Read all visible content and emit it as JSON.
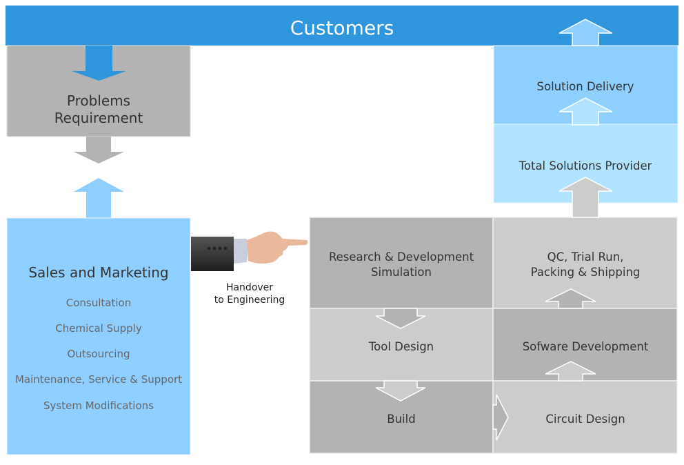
{
  "header": {
    "title": "Customers"
  },
  "problems": {
    "line1": "Problems",
    "line2": "Requirement"
  },
  "sales": {
    "title": "Sales and Marketing",
    "items": [
      "Consultation",
      "Chemical Supply",
      "Outsourcing",
      "Maintenance, Service & Support",
      "System Modifications"
    ]
  },
  "handover": {
    "line1": "Handover",
    "line2": "to Engineering",
    "icon": "pointing-hand-icon"
  },
  "engineering": {
    "rnd": {
      "line1": "Research & Development",
      "line2": "Simulation"
    },
    "tool_design": "Tool Design",
    "build": "Build",
    "qc": {
      "line1": "QC, Trial Run,",
      "line2": "Packing & Shipping"
    },
    "software": "Sofware Development",
    "circuit": "Circuit Design"
  },
  "solutions": {
    "delivery": "Solution Delivery",
    "provider": "Total Solutions Provider"
  },
  "colors": {
    "header_blue": "#2f96de",
    "gray_dark": "#b3b3b3",
    "gray_light": "#cccccc",
    "blue_mid": "#8fcfff",
    "blue_light": "#b1e3ff"
  }
}
